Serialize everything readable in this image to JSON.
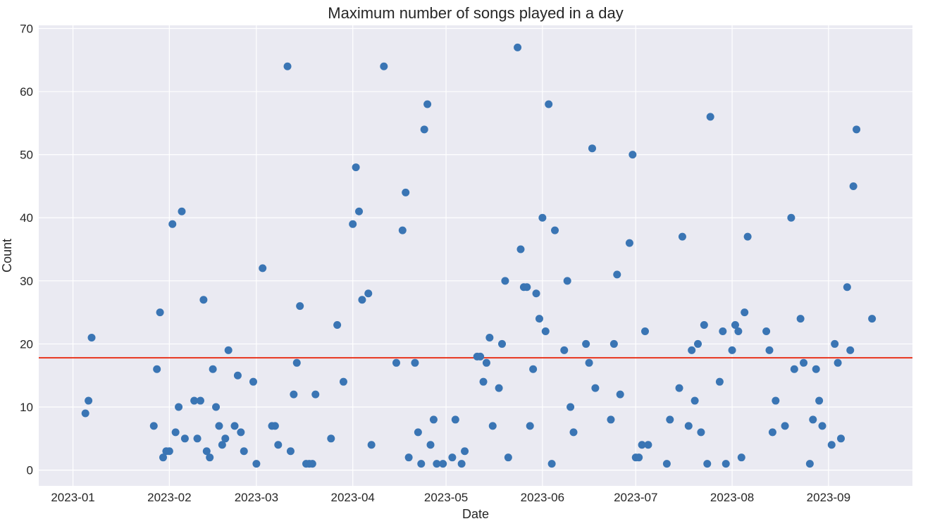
{
  "chart_data": {
    "type": "scatter",
    "title": "Maximum number of songs played in a day",
    "xlabel": "Date",
    "ylabel": "Count",
    "xlim": [
      "2022-12-21",
      "2023-09-28"
    ],
    "ylim": [
      -2.5,
      70.5
    ],
    "x_ticks": [
      "2023-01",
      "2023-02",
      "2023-03",
      "2023-04",
      "2023-05",
      "2023-06",
      "2023-07",
      "2023-08",
      "2023-09"
    ],
    "y_ticks": [
      0,
      10,
      20,
      30,
      40,
      50,
      60,
      70
    ],
    "grid": true,
    "colors": {
      "points": "#3a75b4",
      "reference_line": "#e8341c",
      "background": "#eaeaf2"
    },
    "reference_line": {
      "y": 17.8
    },
    "points": [
      [
        "2023-01-05",
        9
      ],
      [
        "2023-01-06",
        11
      ],
      [
        "2023-01-07",
        21
      ],
      [
        "2023-01-27",
        7
      ],
      [
        "2023-01-28",
        16
      ],
      [
        "2023-01-29",
        25
      ],
      [
        "2023-01-30",
        2
      ],
      [
        "2023-01-31",
        3
      ],
      [
        "2023-02-01",
        3
      ],
      [
        "2023-02-02",
        39
      ],
      [
        "2023-02-03",
        6
      ],
      [
        "2023-02-04",
        10
      ],
      [
        "2023-02-05",
        41
      ],
      [
        "2023-02-06",
        5
      ],
      [
        "2023-02-09",
        11
      ],
      [
        "2023-02-10",
        5
      ],
      [
        "2023-02-11",
        11
      ],
      [
        "2023-02-12",
        27
      ],
      [
        "2023-02-13",
        3
      ],
      [
        "2023-02-14",
        2
      ],
      [
        "2023-02-15",
        16
      ],
      [
        "2023-02-16",
        10
      ],
      [
        "2023-02-17",
        7
      ],
      [
        "2023-02-18",
        4
      ],
      [
        "2023-02-19",
        5
      ],
      [
        "2023-02-20",
        19
      ],
      [
        "2023-02-22",
        7
      ],
      [
        "2023-02-23",
        15
      ],
      [
        "2023-02-24",
        6
      ],
      [
        "2023-02-25",
        3
      ],
      [
        "2023-02-28",
        14
      ],
      [
        "2023-03-01",
        1
      ],
      [
        "2023-03-03",
        32
      ],
      [
        "2023-03-06",
        7
      ],
      [
        "2023-03-07",
        7
      ],
      [
        "2023-03-08",
        4
      ],
      [
        "2023-03-11",
        64
      ],
      [
        "2023-03-12",
        3
      ],
      [
        "2023-03-13",
        12
      ],
      [
        "2023-03-14",
        17
      ],
      [
        "2023-03-15",
        26
      ],
      [
        "2023-03-17",
        1
      ],
      [
        "2023-03-18",
        1
      ],
      [
        "2023-03-19",
        1
      ],
      [
        "2023-03-20",
        12
      ],
      [
        "2023-03-25",
        5
      ],
      [
        "2023-03-27",
        23
      ],
      [
        "2023-03-29",
        14
      ],
      [
        "2023-04-01",
        39
      ],
      [
        "2023-04-02",
        48
      ],
      [
        "2023-04-03",
        41
      ],
      [
        "2023-04-04",
        27
      ],
      [
        "2023-04-06",
        28
      ],
      [
        "2023-04-07",
        4
      ],
      [
        "2023-04-11",
        64
      ],
      [
        "2023-04-15",
        17
      ],
      [
        "2023-04-17",
        38
      ],
      [
        "2023-04-18",
        44
      ],
      [
        "2023-04-19",
        2
      ],
      [
        "2023-04-21",
        17
      ],
      [
        "2023-04-22",
        6
      ],
      [
        "2023-04-23",
        1
      ],
      [
        "2023-04-24",
        54
      ],
      [
        "2023-04-25",
        58
      ],
      [
        "2023-04-26",
        4
      ],
      [
        "2023-04-27",
        8
      ],
      [
        "2023-04-28",
        1
      ],
      [
        "2023-04-30",
        1
      ],
      [
        "2023-05-03",
        2
      ],
      [
        "2023-05-04",
        8
      ],
      [
        "2023-05-06",
        1
      ],
      [
        "2023-05-07",
        3
      ],
      [
        "2023-05-11",
        18
      ],
      [
        "2023-05-12",
        18
      ],
      [
        "2023-05-13",
        14
      ],
      [
        "2023-05-14",
        17
      ],
      [
        "2023-05-15",
        21
      ],
      [
        "2023-05-16",
        7
      ],
      [
        "2023-05-18",
        13
      ],
      [
        "2023-05-19",
        20
      ],
      [
        "2023-05-20",
        30
      ],
      [
        "2023-05-21",
        2
      ],
      [
        "2023-05-24",
        67
      ],
      [
        "2023-05-25",
        35
      ],
      [
        "2023-05-26",
        29
      ],
      [
        "2023-05-27",
        29
      ],
      [
        "2023-05-28",
        7
      ],
      [
        "2023-05-29",
        16
      ],
      [
        "2023-05-30",
        28
      ],
      [
        "2023-05-31",
        24
      ],
      [
        "2023-06-01",
        40
      ],
      [
        "2023-06-02",
        22
      ],
      [
        "2023-06-03",
        58
      ],
      [
        "2023-06-04",
        1
      ],
      [
        "2023-06-05",
        38
      ],
      [
        "2023-06-08",
        19
      ],
      [
        "2023-06-09",
        30
      ],
      [
        "2023-06-10",
        10
      ],
      [
        "2023-06-11",
        6
      ],
      [
        "2023-06-15",
        20
      ],
      [
        "2023-06-16",
        17
      ],
      [
        "2023-06-17",
        51
      ],
      [
        "2023-06-18",
        13
      ],
      [
        "2023-06-23",
        8
      ],
      [
        "2023-06-24",
        20
      ],
      [
        "2023-06-25",
        31
      ],
      [
        "2023-06-26",
        12
      ],
      [
        "2023-06-29",
        36
      ],
      [
        "2023-06-30",
        50
      ],
      [
        "2023-07-01",
        2
      ],
      [
        "2023-07-02",
        2
      ],
      [
        "2023-07-03",
        4
      ],
      [
        "2023-07-04",
        22
      ],
      [
        "2023-07-05",
        4
      ],
      [
        "2023-07-11",
        1
      ],
      [
        "2023-07-12",
        8
      ],
      [
        "2023-07-15",
        13
      ],
      [
        "2023-07-16",
        37
      ],
      [
        "2023-07-18",
        7
      ],
      [
        "2023-07-19",
        19
      ],
      [
        "2023-07-20",
        11
      ],
      [
        "2023-07-21",
        20
      ],
      [
        "2023-07-22",
        6
      ],
      [
        "2023-07-23",
        23
      ],
      [
        "2023-07-24",
        1
      ],
      [
        "2023-07-25",
        56
      ],
      [
        "2023-07-28",
        14
      ],
      [
        "2023-07-29",
        22
      ],
      [
        "2023-07-30",
        1
      ],
      [
        "2023-08-01",
        19
      ],
      [
        "2023-08-02",
        23
      ],
      [
        "2023-08-03",
        22
      ],
      [
        "2023-08-04",
        2
      ],
      [
        "2023-08-05",
        25
      ],
      [
        "2023-08-06",
        37
      ],
      [
        "2023-08-12",
        22
      ],
      [
        "2023-08-13",
        19
      ],
      [
        "2023-08-14",
        6
      ],
      [
        "2023-08-15",
        11
      ],
      [
        "2023-08-18",
        7
      ],
      [
        "2023-08-20",
        40
      ],
      [
        "2023-08-21",
        16
      ],
      [
        "2023-08-23",
        24
      ],
      [
        "2023-08-24",
        17
      ],
      [
        "2023-08-26",
        1
      ],
      [
        "2023-08-27",
        8
      ],
      [
        "2023-08-28",
        16
      ],
      [
        "2023-08-29",
        11
      ],
      [
        "2023-08-30",
        7
      ],
      [
        "2023-09-02",
        4
      ],
      [
        "2023-09-03",
        20
      ],
      [
        "2023-09-04",
        17
      ],
      [
        "2023-09-05",
        5
      ],
      [
        "2023-09-07",
        29
      ],
      [
        "2023-09-08",
        19
      ],
      [
        "2023-09-09",
        45
      ],
      [
        "2023-09-10",
        54
      ],
      [
        "2023-09-15",
        24
      ]
    ]
  }
}
